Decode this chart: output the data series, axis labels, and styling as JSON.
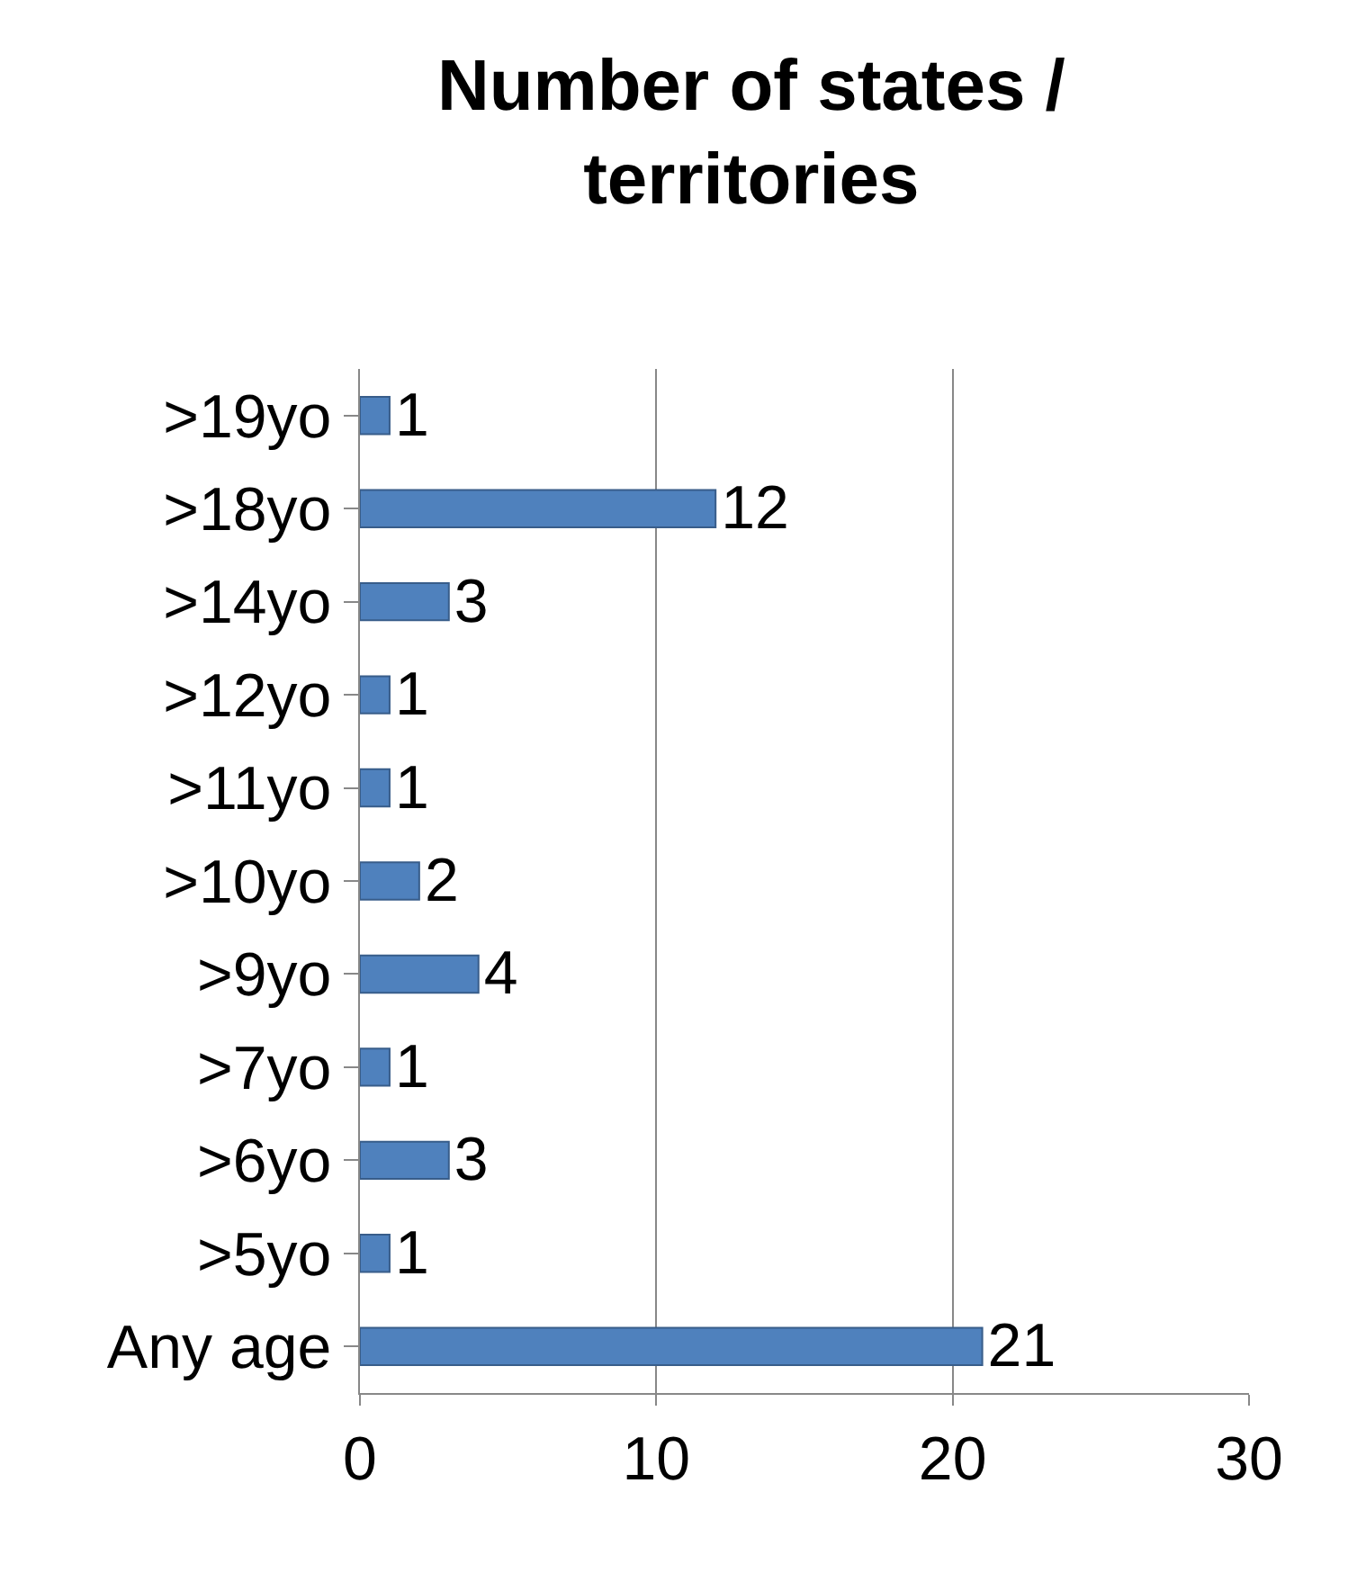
{
  "chart_data": {
    "type": "bar",
    "orientation": "horizontal",
    "title": "Number of states / territories",
    "categories": [
      ">19yo",
      ">18yo",
      ">14yo",
      ">12yo",
      ">11yo",
      ">10yo",
      ">9yo",
      ">7yo",
      ">6yo",
      ">5yo",
      "Any age"
    ],
    "values": [
      1,
      12,
      3,
      1,
      1,
      2,
      4,
      1,
      3,
      1,
      21
    ],
    "color": "#4f81bd",
    "xlim": [
      0,
      30
    ],
    "xticks": [
      0,
      10,
      20,
      30
    ],
    "grid": "x",
    "data_labels": true
  }
}
